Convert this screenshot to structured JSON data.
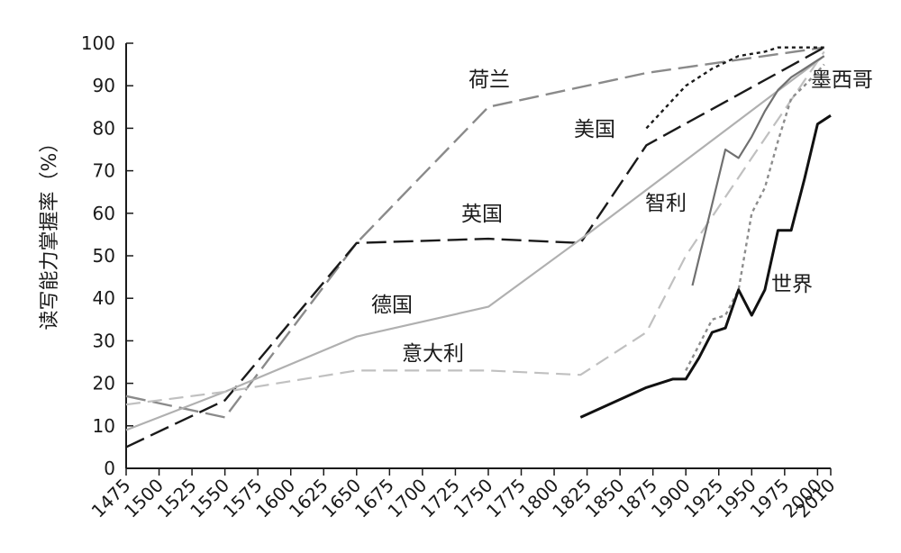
{
  "chart_data": {
    "type": "line",
    "title": "",
    "xlabel": "",
    "ylabel": "读写能力掌握率（%）",
    "xlim": [
      1475,
      2010
    ],
    "ylim": [
      0,
      100
    ],
    "x_ticks": [
      1475,
      1500,
      1525,
      1550,
      1575,
      1600,
      1625,
      1650,
      1675,
      1700,
      1725,
      1750,
      1775,
      1800,
      1825,
      1850,
      1875,
      1900,
      1925,
      1950,
      1975,
      2000,
      2010
    ],
    "y_ticks": [
      0,
      10,
      20,
      30,
      40,
      50,
      60,
      70,
      80,
      90,
      100
    ],
    "grid": false,
    "legend": "none",
    "series": [
      {
        "name": "荷兰",
        "color": "#8a8a8a",
        "dash": "long-dash",
        "points": [
          [
            1475,
            17
          ],
          [
            1550,
            12
          ],
          [
            1650,
            53
          ],
          [
            1750,
            85
          ],
          [
            1870,
            93
          ],
          [
            2005,
            99
          ]
        ]
      },
      {
        "name": "英国",
        "color": "#1a1a1a",
        "dash": "long-dash",
        "points": [
          [
            1475,
            5
          ],
          [
            1550,
            16
          ],
          [
            1650,
            53
          ],
          [
            1750,
            54
          ],
          [
            1820,
            53
          ],
          [
            1870,
            76
          ],
          [
            2005,
            99
          ]
        ]
      },
      {
        "name": "美国",
        "color": "#1a1a1a",
        "dash": "dotted",
        "points": [
          [
            1870,
            80
          ],
          [
            1900,
            90
          ],
          [
            1920,
            94
          ],
          [
            1940,
            97
          ],
          [
            1960,
            98
          ],
          [
            1970,
            99
          ],
          [
            1980,
            99
          ],
          [
            2005,
            99
          ]
        ]
      },
      {
        "name": "德国",
        "color": "#b0b0b0",
        "dash": "solid",
        "points": [
          [
            1475,
            9
          ],
          [
            1550,
            18
          ],
          [
            1650,
            31
          ],
          [
            1750,
            38
          ],
          [
            1825,
            55
          ],
          [
            2005,
            97
          ]
        ]
      },
      {
        "name": "意大利",
        "color": "#c0c0c0",
        "dash": "dash",
        "points": [
          [
            1475,
            15
          ],
          [
            1550,
            18
          ],
          [
            1650,
            23
          ],
          [
            1750,
            23
          ],
          [
            1820,
            22
          ],
          [
            1870,
            32
          ],
          [
            1900,
            50
          ],
          [
            1950,
            73
          ],
          [
            2005,
            98
          ]
        ]
      },
      {
        "name": "智利",
        "color": "#707070",
        "dash": "solid",
        "points": [
          [
            1905,
            43
          ],
          [
            1930,
            75
          ],
          [
            1940,
            73
          ],
          [
            1950,
            78
          ],
          [
            1960,
            84
          ],
          [
            1970,
            89
          ],
          [
            1980,
            92
          ],
          [
            2005,
            97
          ]
        ]
      },
      {
        "name": "墨西哥",
        "color": "#8c8c8c",
        "dash": "dotted",
        "points": [
          [
            1900,
            23
          ],
          [
            1920,
            35
          ],
          [
            1930,
            36
          ],
          [
            1940,
            42
          ],
          [
            1950,
            60
          ],
          [
            1960,
            66
          ],
          [
            1970,
            77
          ],
          [
            1980,
            87
          ],
          [
            1990,
            90
          ],
          [
            2005,
            95
          ]
        ]
      },
      {
        "name": "世界",
        "color": "#111111",
        "dash": "solid",
        "points": [
          [
            1820,
            12
          ],
          [
            1870,
            19
          ],
          [
            1890,
            21
          ],
          [
            1900,
            21
          ],
          [
            1910,
            26
          ],
          [
            1920,
            32
          ],
          [
            1930,
            33
          ],
          [
            1940,
            42
          ],
          [
            1950,
            36
          ],
          [
            1960,
            42
          ],
          [
            1970,
            56
          ],
          [
            1980,
            56
          ],
          [
            1990,
            68
          ],
          [
            2000,
            81
          ],
          [
            2010,
            83
          ]
        ]
      }
    ]
  }
}
